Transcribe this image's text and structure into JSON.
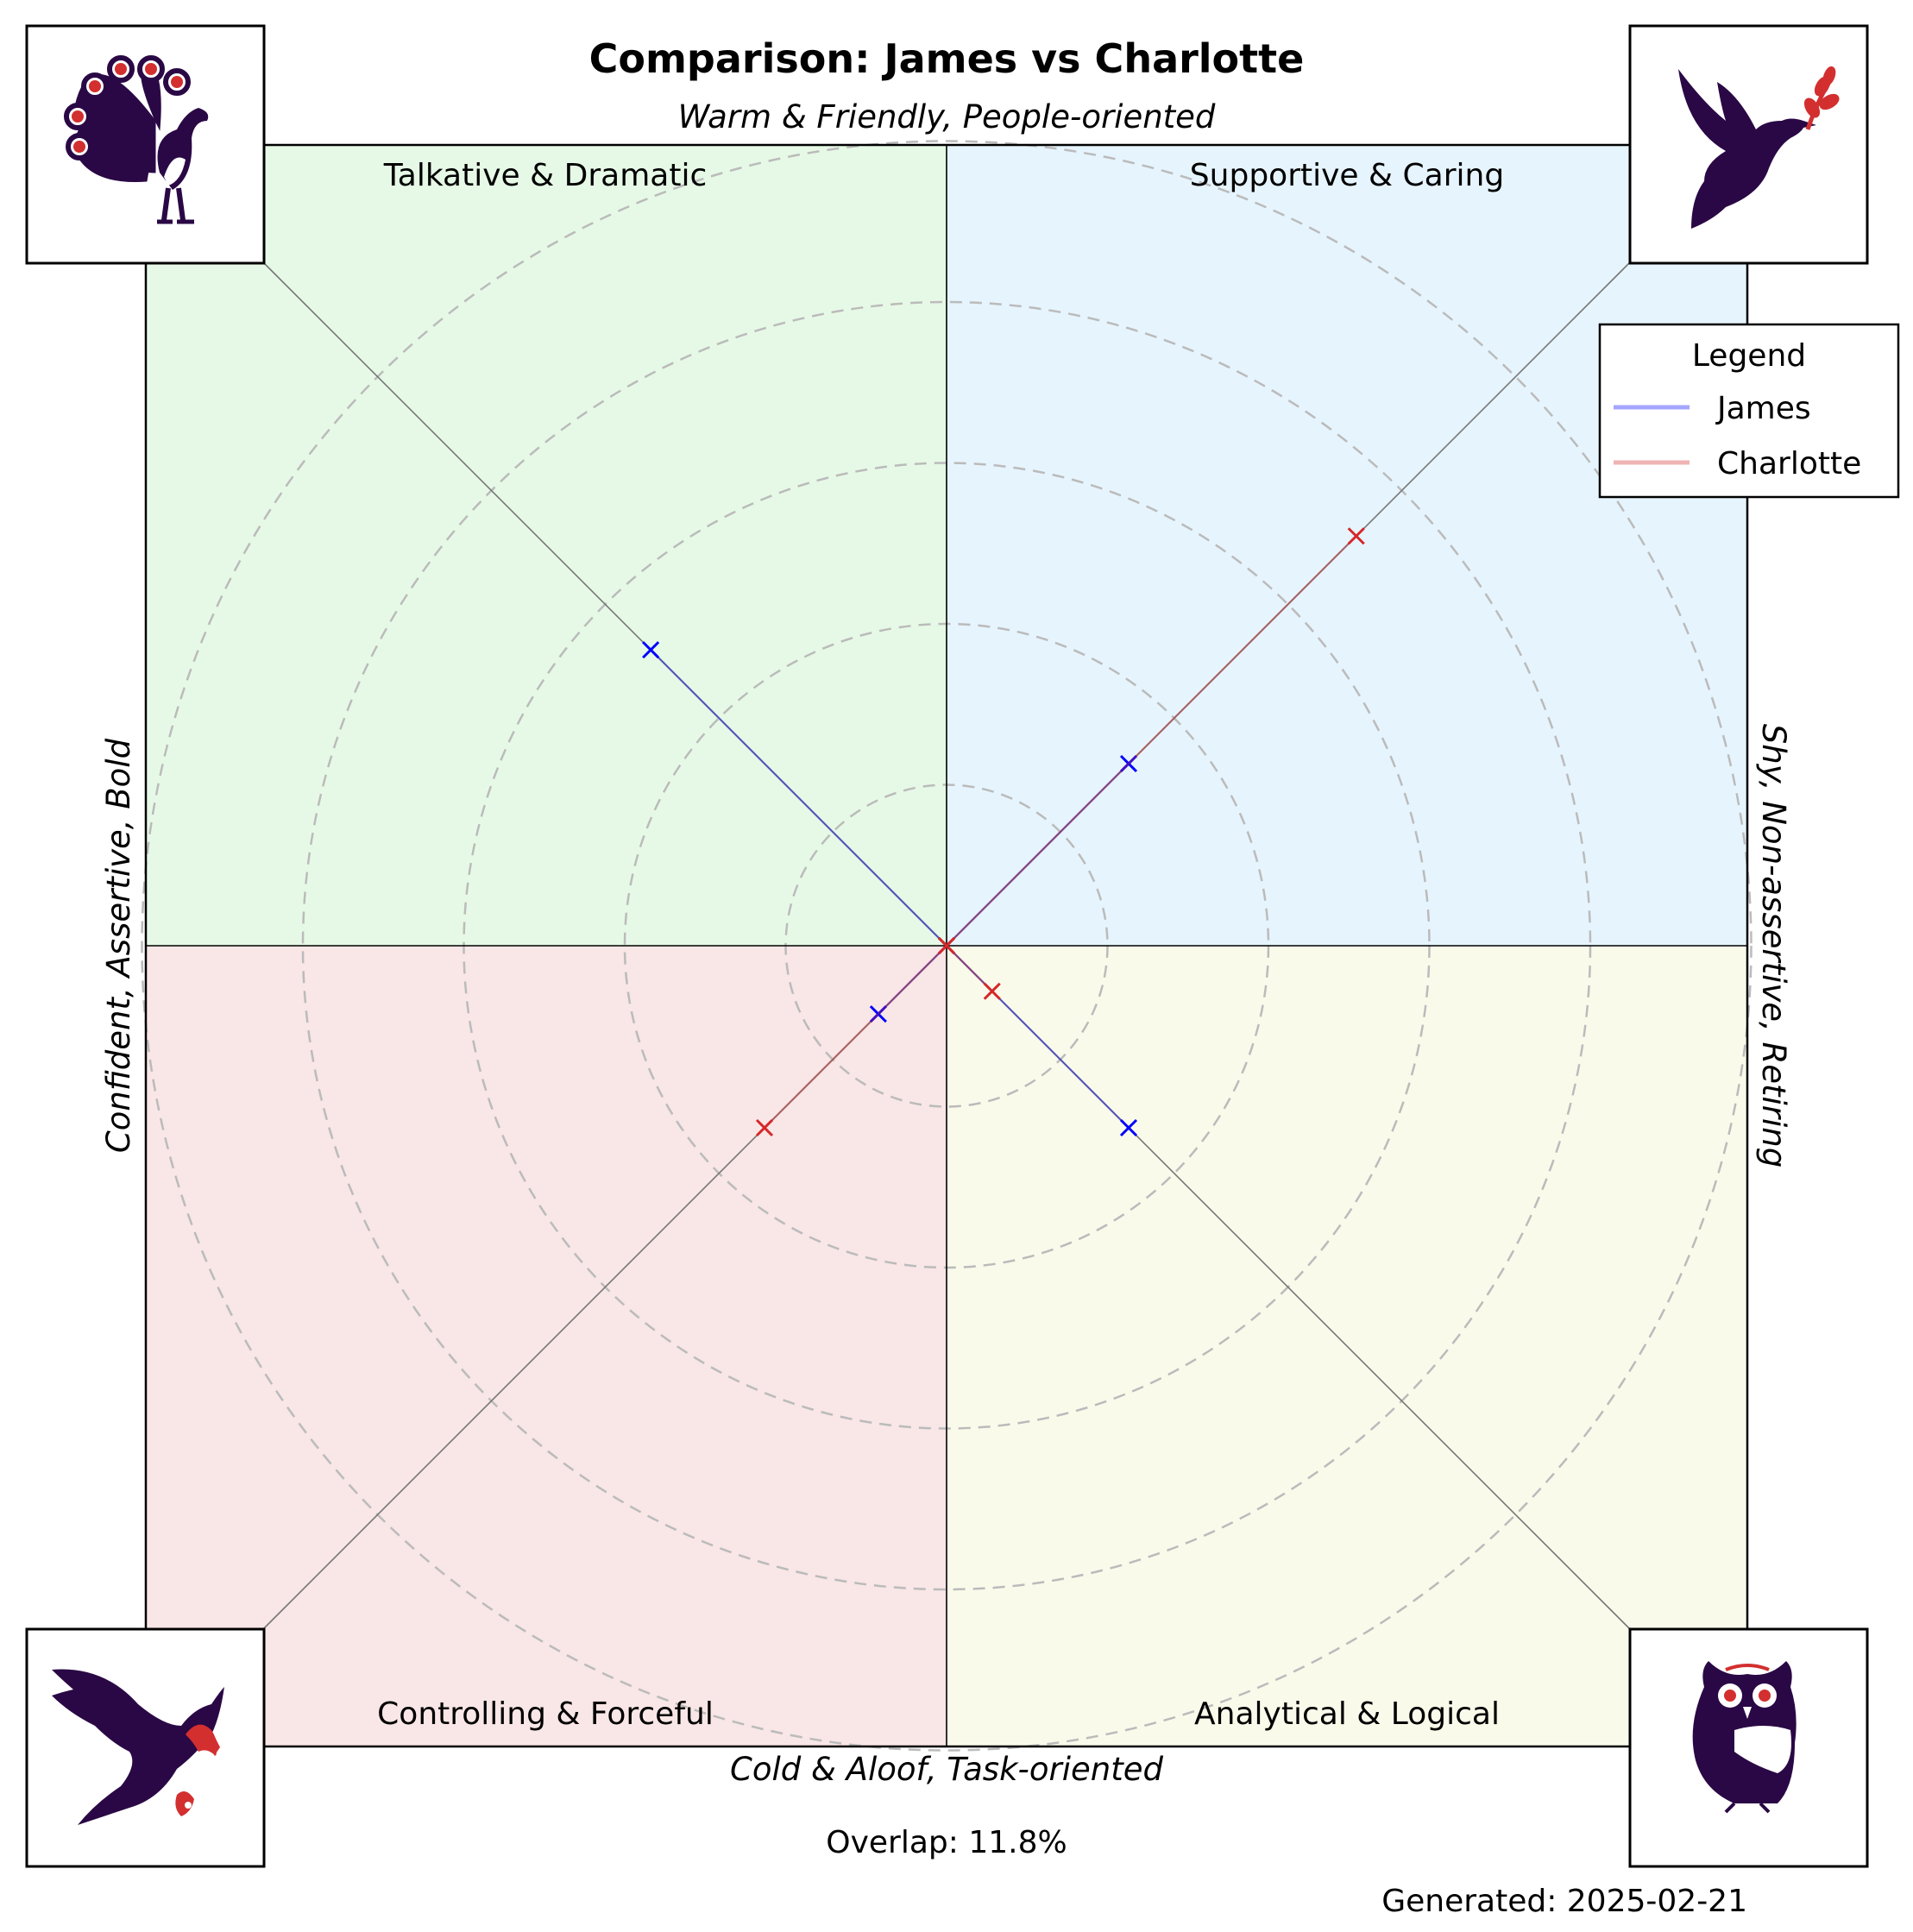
{
  "chart_data": {
    "type": "radar",
    "title": "Comparison: James vs Charlotte",
    "axes": {
      "top": "Warm & Friendly, People-oriented",
      "bottom": "Cold & Aloof, Task-oriented",
      "left": "Confident, Assertive, Bold",
      "right": "Shy, Non-assertive, Retiring"
    },
    "quadrants": [
      {
        "name": "Talkative & Dramatic",
        "color": "#e6f9e6",
        "icon": "peacock-icon"
      },
      {
        "name": "Supportive & Caring",
        "color": "#e6f4fd",
        "icon": "dove-icon"
      },
      {
        "name": "Controlling & Forceful",
        "color": "#f9e6e6",
        "icon": "eagle-icon"
      },
      {
        "name": "Analytical & Logical",
        "color": "#fafaeb",
        "icon": "owl-icon"
      }
    ],
    "rlim": [
      0,
      5
    ],
    "rings": [
      1,
      2,
      3,
      4,
      5
    ],
    "grid": true,
    "legend": {
      "title": "Legend",
      "placement": "top-right"
    },
    "series": [
      {
        "name": "James",
        "color": "#0000ff",
        "values": {
          "Talkative & Dramatic": 2.6,
          "Supportive & Caring": 1.6,
          "Analytical & Logical": 1.6,
          "Controlling & Forceful": 0.6,
          "Warm & Friendly, People-oriented": 0.0,
          "Shy, Non-assertive, Retiring": 0.0,
          "Cold & Aloof, Task-oriented": 0.0,
          "Confident, Assertive, Bold": 0.0
        }
      },
      {
        "name": "Charlotte",
        "color": "#d62728",
        "values": {
          "Talkative & Dramatic": 0.0,
          "Supportive & Caring": 3.6,
          "Analytical & Logical": 0.4,
          "Controlling & Forceful": 1.6,
          "Warm & Friendly, People-oriented": 0.0,
          "Shy, Non-assertive, Retiring": 0.0,
          "Cold & Aloof, Task-oriented": 0.0,
          "Confident, Assertive, Bold": 0.0
        }
      }
    ]
  },
  "footer": {
    "overlap": "Overlap: 11.8%",
    "generated": "Generated: 2025-02-21"
  }
}
